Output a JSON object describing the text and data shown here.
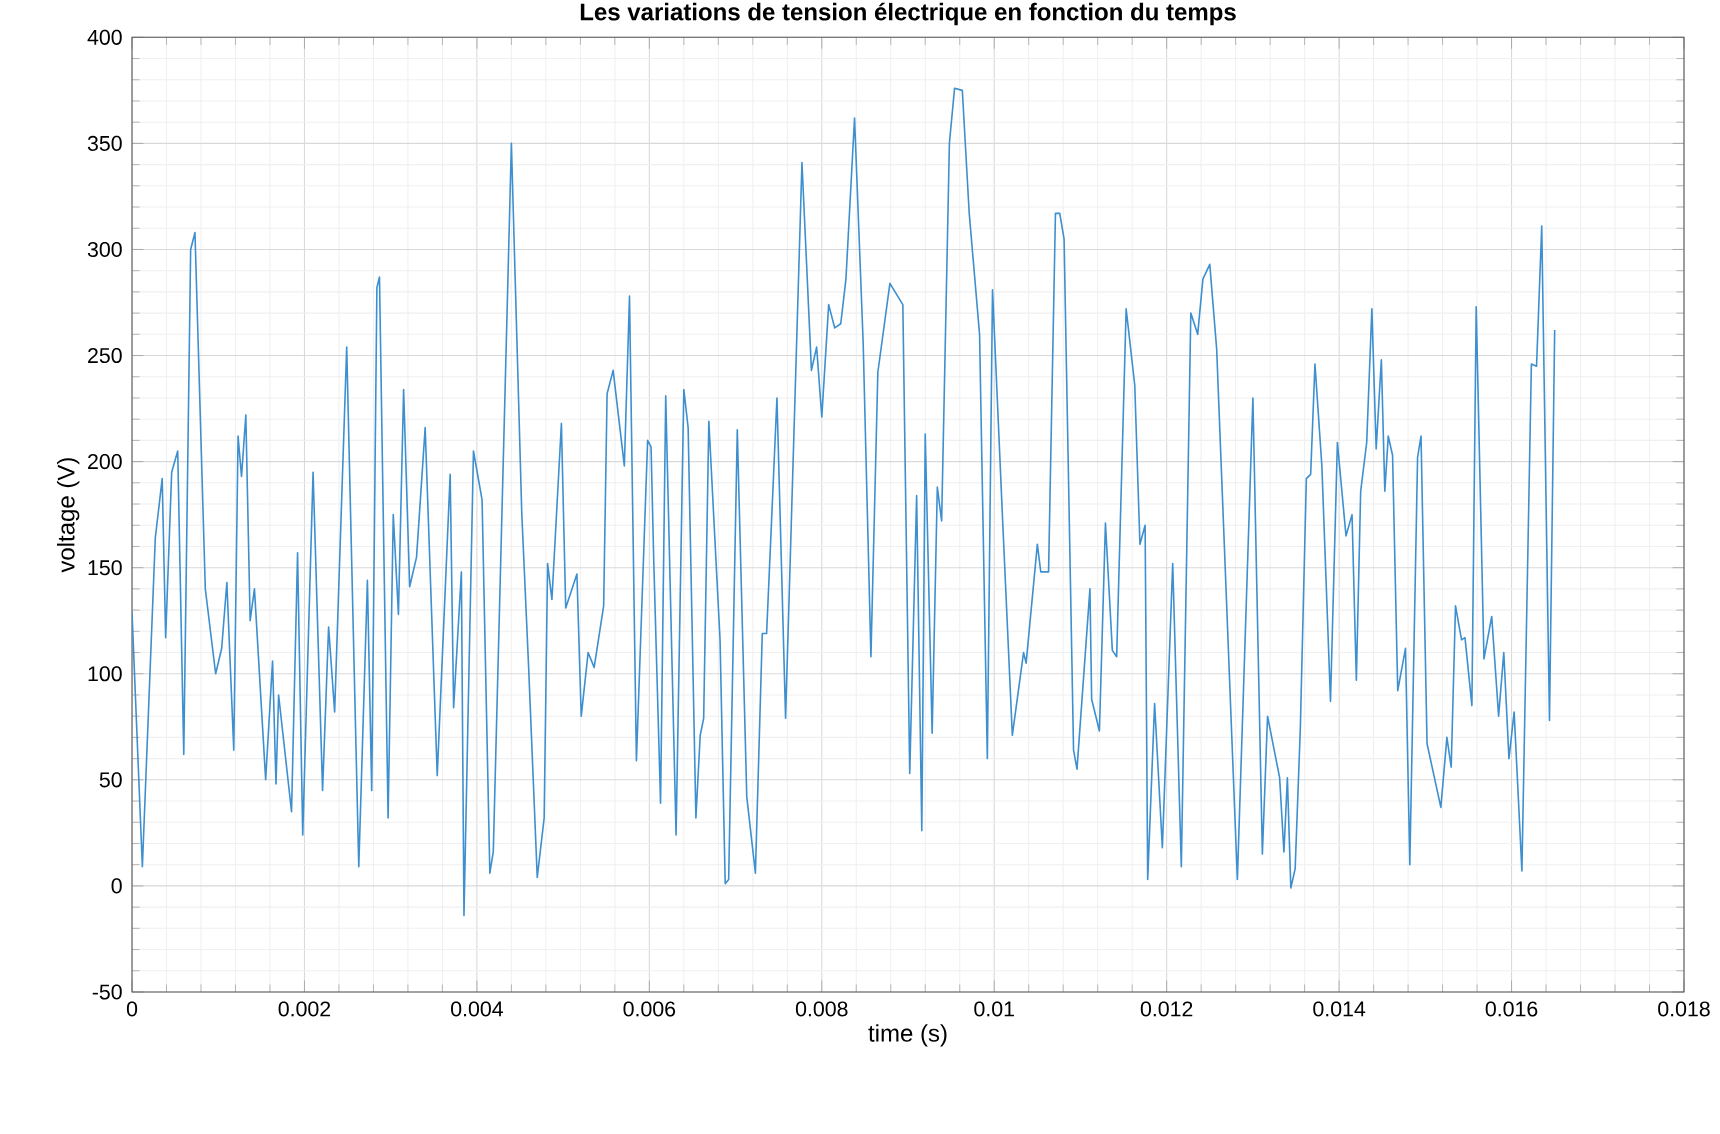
{
  "chart_data": {
    "type": "line",
    "title": "Les variations de tension électrique en fonction du temps",
    "xlabel": "time (s)",
    "ylabel": "voltage (V)",
    "color": "#3d8fcf",
    "grid": true,
    "xlim": [
      0,
      0.018
    ],
    "ylim": [
      -50,
      400
    ],
    "xticks": [
      0,
      0.002,
      0.004,
      0.006,
      0.008,
      0.01,
      0.012,
      0.014,
      0.016,
      0.018
    ],
    "yticks": [
      -50,
      0,
      50,
      100,
      150,
      200,
      250,
      300,
      350,
      400
    ],
    "x": [
      0,
      0.00012,
      0.00027,
      0.00035,
      0.00039,
      0.00046,
      0.00053,
      0.0006,
      0.00068,
      0.00073,
      0.00085,
      0.00097,
      0.00104,
      0.0011,
      0.00118,
      0.00123,
      0.00127,
      0.00132,
      0.00137,
      0.00142,
      0.00155,
      0.00163,
      0.00167,
      0.0017,
      0.00185,
      0.00192,
      0.00198,
      0.0021,
      0.00221,
      0.00228,
      0.00235,
      0.00249,
      0.00263,
      0.00273,
      0.00278,
      0.00284,
      0.00287,
      0.00297,
      0.00303,
      0.00309,
      0.00315,
      0.00322,
      0.0033,
      0.0034,
      0.00354,
      0.00369,
      0.00373,
      0.00382,
      0.00385,
      0.00396,
      0.00406,
      0.00415,
      0.00419,
      0.0044,
      0.00452,
      0.0046,
      0.0047,
      0.00478,
      0.00482,
      0.00487,
      0.00498,
      0.00503,
      0.00516,
      0.00521,
      0.00529,
      0.00536,
      0.00547,
      0.00551,
      0.00558,
      0.00571,
      0.00577,
      0.00585,
      0.00598,
      0.00602,
      0.00605,
      0.00613,
      0.00619,
      0.00631,
      0.0064,
      0.00645,
      0.00654,
      0.00659,
      0.00663,
      0.00669,
      0.00682,
      0.00688,
      0.00692,
      0.00702,
      0.00713,
      0.00723,
      0.00731,
      0.00736,
      0.00748,
      0.00758,
      0.00765,
      0.00777,
      0.00788,
      0.00794,
      0.008,
      0.00808,
      0.00815,
      0.00822,
      0.00828,
      0.00838,
      0.00848,
      0.00857,
      0.00865,
      0.00879,
      0.00894,
      0.00902,
      0.0091,
      0.00916,
      0.0092,
      0.00928,
      0.00934,
      0.00939,
      0.00948,
      0.00954,
      0.00963,
      0.00971,
      0.00983,
      0.00992,
      0.00998,
      0.0101,
      0.01021,
      0.01034,
      0.01037,
      0.0105,
      0.01054,
      0.01063,
      0.01071,
      0.01076,
      0.01081,
      0.01092,
      0.01096,
      0.01111,
      0.01113,
      0.01122,
      0.01129,
      0.01137,
      0.01142,
      0.01153,
      0.01163,
      0.01169,
      0.01175,
      0.01178,
      0.01186,
      0.01195,
      0.01207,
      0.01217,
      0.01228,
      0.01236,
      0.01242,
      0.0125,
      0.01258,
      0.01282,
      0.013,
      0.01311,
      0.01317,
      0.01331,
      0.01336,
      0.0134,
      0.01344,
      0.01349,
      0.01355,
      0.01362,
      0.01367,
      0.01372,
      0.0138,
      0.0139,
      0.01398,
      0.01408,
      0.01415,
      0.0142,
      0.01425,
      0.01432,
      0.01438,
      0.01443,
      0.01449,
      0.01453,
      0.01457,
      0.01462,
      0.01468,
      0.01477,
      0.01482,
      0.01491,
      0.01495,
      0.01502,
      0.01518,
      0.01525,
      0.0153,
      0.01535,
      0.01542,
      0.01546,
      0.01554,
      0.01559,
      0.01568,
      0.01577,
      0.01585,
      0.01591,
      0.01597,
      0.01603,
      0.01612,
      0.01623,
      0.01629,
      0.01635,
      0.01644,
      0.0165
    ],
    "values": [
      129,
      9,
      164,
      192,
      117,
      195,
      205,
      62,
      300,
      308,
      140,
      100,
      112,
      143,
      64,
      212,
      193,
      222,
      125,
      140,
      50,
      106,
      48,
      90,
      35,
      157,
      24,
      195,
      45,
      122,
      82,
      254,
      9,
      144,
      45,
      282,
      287,
      32,
      175,
      128,
      234,
      141,
      155,
      216,
      52,
      194,
      84,
      148,
      -14,
      205,
      182,
      6,
      16,
      350,
      176,
      103,
      4,
      32,
      152,
      135,
      218,
      131,
      147,
      80,
      110,
      103,
      132,
      232,
      243,
      198,
      278,
      59,
      210,
      207,
      155,
      39,
      231,
      24,
      234,
      216,
      32,
      71,
      79,
      219,
      116,
      1,
      3,
      215,
      42,
      6,
      119,
      119,
      230,
      79,
      176,
      341,
      243,
      254,
      221,
      274,
      263,
      265,
      286,
      362,
      256,
      108,
      242,
      284,
      274,
      53,
      184,
      26,
      213,
      72,
      188,
      172,
      350,
      376,
      375,
      317,
      260,
      60,
      281,
      170,
      71,
      110,
      105,
      161,
      148,
      148,
      317,
      317,
      305,
      64,
      55,
      140,
      88,
      73,
      171,
      111,
      108,
      272,
      236,
      161,
      170,
      3,
      86,
      18,
      152,
      9,
      270,
      260,
      286,
      293,
      253,
      3,
      230,
      15,
      80,
      51,
      16,
      51,
      -1,
      8,
      74,
      192,
      194,
      246,
      198,
      87,
      209,
      165,
      175,
      97,
      186,
      209,
      272,
      206,
      248,
      186,
      212,
      203,
      92,
      112,
      10,
      202,
      212,
      67,
      37,
      70,
      56,
      132,
      116,
      117,
      85,
      273,
      107,
      127,
      80,
      110,
      60,
      82,
      7,
      246,
      245,
      311,
      78,
      262
    ]
  }
}
